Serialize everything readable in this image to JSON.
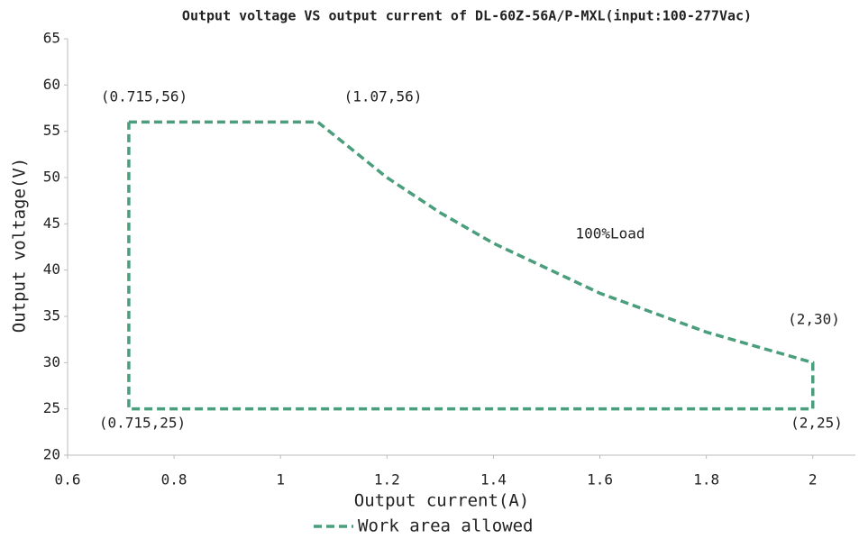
{
  "chart_data": {
    "type": "line",
    "title": "Output voltage VS output current of DL-60Z-56A/P-MXL(input:100-277Vac)",
    "x_label": "Output current(A)",
    "y_label": "Output voltage(V)",
    "x": [
      0.715,
      1.07,
      1.2,
      1.3,
      1.4,
      1.6,
      1.8,
      2,
      2,
      0.715,
      0.715
    ],
    "series": [
      {
        "name": "Work area allowed",
        "color": "#4a9e7c",
        "dashed": true,
        "values": [
          56,
          56,
          50,
          46.2,
          42.9,
          37.5,
          33.3,
          30,
          25,
          25,
          56
        ]
      }
    ],
    "annotations": [
      "(0.715,56)",
      "(1.07,56)",
      "100%Load",
      "(2,30)",
      "(0.715,25)",
      "(2,25)"
    ],
    "xlim": [
      0.6,
      2.08
    ],
    "xticks": [
      0.6,
      0.8,
      1,
      1.2,
      1.4,
      1.6,
      1.8,
      2
    ],
    "ylim": [
      20,
      65
    ],
    "yticks": [
      20,
      25,
      30,
      35,
      40,
      45,
      50,
      55,
      60,
      65
    ],
    "grid": false,
    "legend": "bottom"
  }
}
